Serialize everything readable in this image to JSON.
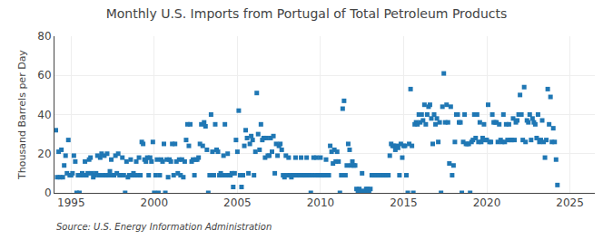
{
  "chart_data": {
    "type": "scatter",
    "title": "Monthly U.S. Imports from Portugal of Total Petroleum Products",
    "ylabel": "Thousand Barrels per Day",
    "annotations": [
      "Source: U.S. Energy Information Administration"
    ],
    "marker": "square",
    "grid": true,
    "xlim": [
      1994.0,
      2026.5
    ],
    "xticks": [
      1995,
      2000,
      2005,
      2010,
      2015,
      2020,
      2025
    ],
    "ylim": [
      0,
      80
    ],
    "yticks": [
      0,
      20,
      40,
      60,
      80
    ],
    "x": [
      1994.083,
      1994.167,
      1994.25,
      1994.333,
      1994.417,
      1994.5,
      1994.583,
      1994.667,
      1994.75,
      1994.833,
      1994.917,
      1995.0,
      1995.083,
      1995.167,
      1995.25,
      1995.333,
      1995.417,
      1995.5,
      1995.583,
      1995.667,
      1995.75,
      1995.833,
      1995.917,
      1996.0,
      1996.083,
      1996.167,
      1996.25,
      1996.333,
      1996.417,
      1996.5,
      1996.583,
      1996.667,
      1996.75,
      1996.833,
      1996.917,
      1997.0,
      1997.083,
      1997.167,
      1997.25,
      1997.333,
      1997.417,
      1997.5,
      1997.583,
      1997.667,
      1997.75,
      1997.833,
      1997.917,
      1998.0,
      1998.083,
      1998.167,
      1998.25,
      1998.333,
      1998.417,
      1998.5,
      1998.583,
      1998.667,
      1998.75,
      1998.833,
      1998.917,
      1999.0,
      1999.083,
      1999.167,
      1999.25,
      1999.333,
      1999.417,
      1999.5,
      1999.583,
      1999.667,
      1999.75,
      1999.833,
      1999.917,
      2000.0,
      2000.083,
      2000.167,
      2000.25,
      2000.333,
      2000.417,
      2000.5,
      2000.583,
      2000.667,
      2000.75,
      2000.833,
      2000.917,
      2001.0,
      2001.083,
      2001.167,
      2001.25,
      2001.333,
      2001.417,
      2001.5,
      2001.583,
      2001.667,
      2001.75,
      2001.833,
      2001.917,
      2002.0,
      2002.083,
      2002.167,
      2002.25,
      2002.333,
      2002.417,
      2002.5,
      2002.583,
      2002.667,
      2002.75,
      2002.833,
      2002.917,
      2003.0,
      2003.083,
      2003.167,
      2003.25,
      2003.333,
      2003.417,
      2003.5,
      2003.583,
      2003.667,
      2003.75,
      2003.833,
      2003.917,
      2004.0,
      2004.083,
      2004.167,
      2004.25,
      2004.333,
      2004.417,
      2004.5,
      2004.583,
      2004.667,
      2004.75,
      2004.833,
      2004.917,
      2005.0,
      2005.083,
      2005.167,
      2005.25,
      2005.333,
      2005.417,
      2005.5,
      2005.583,
      2005.667,
      2005.75,
      2005.833,
      2005.917,
      2006.0,
      2006.083,
      2006.167,
      2006.25,
      2006.333,
      2006.417,
      2006.5,
      2006.583,
      2006.667,
      2006.75,
      2006.833,
      2006.917,
      2007.0,
      2007.083,
      2007.167,
      2007.25,
      2007.333,
      2007.417,
      2007.5,
      2007.583,
      2007.667,
      2007.75,
      2007.833,
      2007.917,
      2008.0,
      2008.083,
      2008.167,
      2008.25,
      2008.333,
      2008.417,
      2008.5,
      2008.583,
      2008.667,
      2008.75,
      2008.833,
      2008.917,
      2009.0,
      2009.083,
      2009.167,
      2009.25,
      2009.333,
      2009.417,
      2009.5,
      2009.583,
      2009.667,
      2009.75,
      2009.833,
      2009.917,
      2010.0,
      2010.083,
      2010.167,
      2010.25,
      2010.333,
      2010.417,
      2010.5,
      2010.583,
      2010.667,
      2010.75,
      2010.833,
      2010.917,
      2011.0,
      2011.083,
      2011.167,
      2011.25,
      2011.333,
      2011.417,
      2011.5,
      2011.583,
      2011.667,
      2011.75,
      2011.833,
      2011.917,
      2012.0,
      2012.083,
      2012.167,
      2012.25,
      2012.333,
      2012.417,
      2012.5,
      2012.583,
      2012.667,
      2012.75,
      2012.833,
      2012.917,
      2013.0,
      2013.083,
      2013.167,
      2013.25,
      2013.333,
      2013.417,
      2013.5,
      2013.583,
      2013.667,
      2013.75,
      2013.833,
      2013.917,
      2014.0,
      2014.083,
      2014.167,
      2014.25,
      2014.333,
      2014.417,
      2014.5,
      2014.583,
      2014.667,
      2014.75,
      2014.833,
      2014.917,
      2015.0,
      2015.083,
      2015.167,
      2015.25,
      2015.333,
      2015.417,
      2015.5,
      2015.583,
      2015.667,
      2015.75,
      2015.833,
      2015.917,
      2016.0,
      2016.083,
      2016.167,
      2016.25,
      2016.333,
      2016.417,
      2016.5,
      2016.583,
      2016.667,
      2016.75,
      2016.833,
      2016.917,
      2017.0,
      2017.083,
      2017.167,
      2017.25,
      2017.333,
      2017.417,
      2017.5,
      2017.583,
      2017.667,
      2017.75,
      2017.833,
      2017.917,
      2018.0,
      2018.083,
      2018.167,
      2018.25,
      2018.333,
      2018.417,
      2018.5,
      2018.583,
      2018.667,
      2018.75,
      2018.833,
      2018.917,
      2019.0,
      2019.083,
      2019.167,
      2019.25,
      2019.333,
      2019.417,
      2019.5,
      2019.583,
      2019.667,
      2019.75,
      2019.833,
      2019.917,
      2020.0,
      2020.083,
      2020.167,
      2020.25,
      2020.333,
      2020.417,
      2020.5,
      2020.583,
      2020.667,
      2020.75,
      2020.833,
      2020.917,
      2021.0,
      2021.083,
      2021.167,
      2021.25,
      2021.333,
      2021.417,
      2021.5,
      2021.583,
      2021.667,
      2021.75,
      2021.833,
      2021.917,
      2022.0,
      2022.083,
      2022.167,
      2022.25,
      2022.333,
      2022.417,
      2022.5,
      2022.583,
      2022.667,
      2022.75,
      2022.833,
      2022.917,
      2023.0,
      2023.083,
      2023.167,
      2023.25,
      2023.333,
      2023.417,
      2023.5,
      2023.583,
      2023.667,
      2023.75,
      2023.833,
      2023.917,
      2024.0,
      2024.083,
      2024.167,
      2024.25
    ],
    "values": [
      32,
      8,
      21,
      8,
      22,
      8,
      14,
      19,
      10,
      27,
      9,
      9,
      10,
      19,
      16,
      0,
      9,
      0,
      9,
      10,
      9,
      16,
      9,
      10,
      17,
      18,
      10,
      8,
      9,
      10,
      19,
      9,
      18,
      20,
      9,
      19,
      9,
      20,
      9,
      11,
      17,
      9,
      9,
      19,
      10,
      20,
      9,
      9,
      18,
      9,
      0,
      16,
      8,
      9,
      17,
      9,
      10,
      9,
      16,
      9,
      18,
      9,
      26,
      25,
      17,
      16,
      18,
      9,
      18,
      16,
      26,
      0,
      9,
      17,
      0,
      9,
      17,
      16,
      25,
      0,
      17,
      8,
      17,
      16,
      25,
      9,
      25,
      16,
      10,
      17,
      9,
      17,
      8,
      16,
      27,
      35,
      24,
      35,
      16,
      17,
      9,
      17,
      17,
      18,
      25,
      35,
      24,
      36,
      34,
      22,
      0,
      9,
      40,
      21,
      9,
      35,
      22,
      21,
      9,
      10,
      9,
      19,
      35,
      9,
      20,
      9,
      9,
      10,
      3,
      10,
      27,
      21,
      42,
      9,
      3,
      9,
      24,
      32,
      28,
      10,
      25,
      29,
      27,
      9,
      21,
      51,
      30,
      22,
      35,
      27,
      28,
      18,
      28,
      19,
      19,
      28,
      21,
      29,
      10,
      25,
      19,
      24,
      25,
      22,
      9,
      8,
      19,
      9,
      18,
      9,
      8,
      9,
      9,
      18,
      9,
      9,
      9,
      18,
      9,
      9,
      9,
      18,
      9,
      9,
      0,
      9,
      18,
      9,
      18,
      9,
      9,
      18,
      9,
      9,
      9,
      17,
      9,
      9,
      24,
      21,
      15,
      22,
      16,
      21,
      16,
      0,
      9,
      43,
      47,
      9,
      14,
      25,
      22,
      14,
      16,
      14,
      14,
      2,
      0,
      2,
      0,
      10,
      1,
      0,
      2,
      2,
      0,
      2,
      9,
      9,
      9,
      9,
      9,
      9,
      9,
      9,
      9,
      9,
      9,
      9,
      9,
      19,
      25,
      24,
      24,
      22,
      24,
      23,
      9,
      25,
      18,
      24,
      24,
      9,
      0,
      25,
      53,
      24,
      0,
      35,
      36,
      35,
      40,
      36,
      40,
      37,
      45,
      35,
      40,
      44,
      45,
      38,
      25,
      40,
      35,
      38,
      26,
      36,
      0,
      44,
      61,
      36,
      45,
      36,
      15,
      44,
      9,
      14,
      26,
      40,
      40,
      36,
      36,
      0,
      26,
      40,
      25,
      25,
      25,
      0,
      26,
      27,
      40,
      28,
      40,
      26,
      36,
      26,
      28,
      35,
      27,
      27,
      45,
      26,
      26,
      40,
      36,
      36,
      36,
      26,
      35,
      27,
      26,
      40,
      26,
      35,
      27,
      35,
      27,
      27,
      38,
      27,
      36,
      37,
      40,
      50,
      40,
      27,
      54,
      26,
      37,
      36,
      40,
      27,
      38,
      36,
      35,
      28,
      40,
      26,
      27,
      37,
      26,
      18,
      27,
      53,
      35,
      49,
      26,
      33,
      26,
      17,
      4
    ]
  }
}
